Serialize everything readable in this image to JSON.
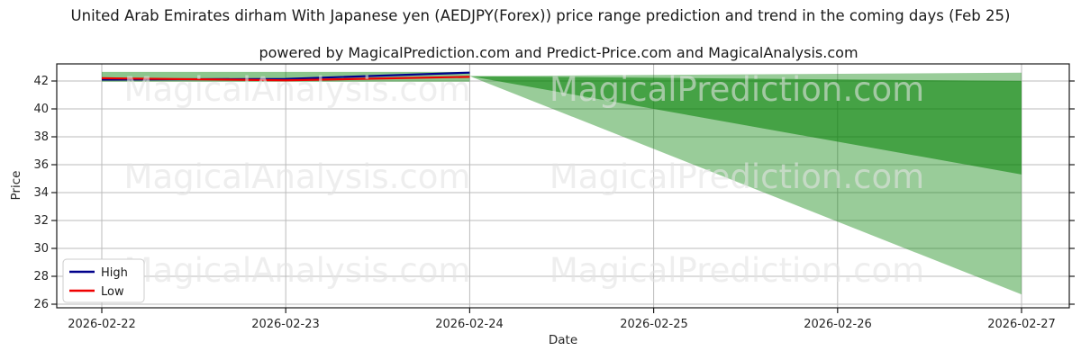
{
  "title": "United Arab Emirates dirham With Japanese yen (AEDJPY(Forex)) price range prediction and trend in the coming days (Feb 25)",
  "subtitle": "powered by MagicalPrediction.com and Predict-Price.com and MagicalAnalysis.com",
  "axes": {
    "x_label": "Date",
    "y_label": "Price",
    "x_ticks": [
      "2026-02-22",
      "2026-02-23",
      "2026-02-24",
      "2026-02-25",
      "2026-02-26",
      "2026-02-27"
    ],
    "y_ticks": [
      "26",
      "28",
      "30",
      "32",
      "34",
      "36",
      "38",
      "40",
      "42"
    ]
  },
  "legend": {
    "items": [
      {
        "label": "High",
        "color": "#00008b"
      },
      {
        "label": "Low",
        "color": "#ef0000"
      }
    ]
  },
  "watermarks": {
    "left_text": "MagicalAnalysis.com",
    "right_text": "MagicalPrediction.com"
  },
  "colors": {
    "high_line": "#00008b",
    "low_line": "#ef0000",
    "history_band": "rgba(0,128,0,0.45)",
    "outer_band": "rgba(0,128,0,0.40)",
    "inner_band": "rgba(0,128,0,0.55)",
    "grid": "#bbbbbb",
    "spine": "#1a1a1a",
    "watermark": "#e3e3e3"
  },
  "chart_data": {
    "type": "line",
    "title": "United Arab Emirates dirham With Japanese yen (AEDJPY(Forex)) price range prediction and trend in the coming days (Feb 25)",
    "xlabel": "Date",
    "ylabel": "Price",
    "x": [
      "2026-02-22",
      "2026-02-23",
      "2026-02-24"
    ],
    "series": [
      {
        "name": "High",
        "values": [
          42.1,
          42.15,
          42.6
        ]
      },
      {
        "name": "Low",
        "values": [
          42.2,
          42.05,
          42.3
        ]
      }
    ],
    "history_band": {
      "x": [
        "2026-02-22",
        "2026-02-24"
      ],
      "upper": 42.65,
      "lower": 41.95
    },
    "prediction_fan": {
      "x": [
        "2026-02-24",
        "2026-02-27"
      ],
      "outer_band": {
        "upper": [
          42.35,
          42.6
        ],
        "lower": [
          42.35,
          26.7
        ]
      },
      "inner_band": {
        "upper": [
          42.35,
          42.0
        ],
        "lower": [
          42.35,
          35.3
        ]
      }
    },
    "ylim": [
      25.7,
      43.2
    ],
    "y_tick_values": [
      26,
      28,
      30,
      32,
      34,
      36,
      38,
      40,
      42
    ],
    "x_tick_labels": [
      "2026-02-22",
      "2026-02-23",
      "2026-02-24",
      "2026-02-25",
      "2026-02-26",
      "2026-02-27"
    ],
    "grid": true,
    "legend_position": "lower left"
  }
}
